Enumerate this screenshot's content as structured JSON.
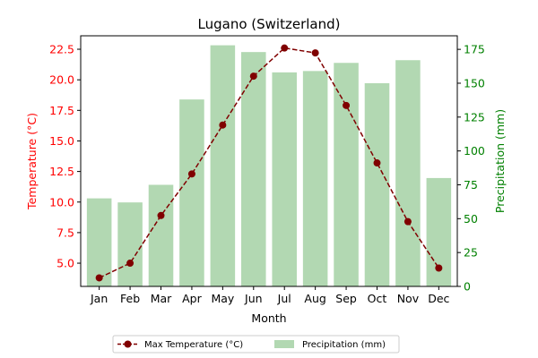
{
  "chart_data": {
    "type": "bar+line",
    "title": "Lugano (Switzerland)",
    "xlabel": "Month",
    "categories": [
      "Jan",
      "Feb",
      "Mar",
      "Apr",
      "May",
      "Jun",
      "Jul",
      "Aug",
      "Sep",
      "Oct",
      "Nov",
      "Dec"
    ],
    "left_axis": {
      "label": "Temperature (°C)",
      "color": "#ff0000",
      "ylim": [
        3.1,
        23.6
      ],
      "ticks": [
        5.0,
        7.5,
        10.0,
        12.5,
        15.0,
        17.5,
        20.0,
        22.5
      ],
      "tick_labels": [
        "5.0",
        "7.5",
        "10.0",
        "12.5",
        "15.0",
        "17.5",
        "20.0",
        "22.5"
      ]
    },
    "right_axis": {
      "label": "Precipitation (mm)",
      "color": "#008000",
      "ylim": [
        0,
        185
      ],
      "ticks": [
        0,
        25,
        50,
        75,
        100,
        125,
        150,
        175
      ],
      "tick_labels": [
        "0",
        "25",
        "50",
        "75",
        "100",
        "125",
        "150",
        "175"
      ]
    },
    "series": [
      {
        "name": "Max Temperature (°C)",
        "type": "line",
        "axis": "left",
        "color": "#800000",
        "line_style": "dashed",
        "marker": "circle",
        "values": [
          3.8,
          5.0,
          8.9,
          12.3,
          16.3,
          20.3,
          22.6,
          22.2,
          17.9,
          13.2,
          8.4,
          4.6
        ]
      },
      {
        "name": "Precipitation (mm)",
        "type": "bar",
        "axis": "right",
        "color": "#b2d8b2",
        "values": [
          65,
          62,
          75,
          138,
          178,
          173,
          158,
          159,
          165,
          150,
          167,
          80
        ]
      }
    ],
    "grid": false,
    "legend": {
      "placement": "bottom-center",
      "entries": [
        "Max Temperature (°C)",
        "Precipitation (mm)"
      ]
    }
  }
}
